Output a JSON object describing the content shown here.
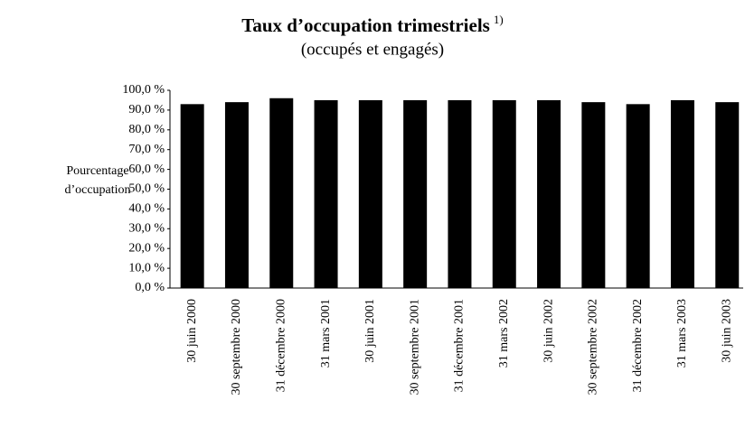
{
  "chart_data": {
    "type": "bar",
    "title": "Taux d’occupation trimestriels",
    "title_note": "1)",
    "subtitle": "(occupés et engagés)",
    "y_axis_label": [
      "Pourcentage",
      "d’occupation"
    ],
    "categories": [
      "30 juin 2000",
      "30 septembre 2000",
      "31 décembre 2000",
      "31 mars 2001",
      "30 juin 2001",
      "30 septembre 2001",
      "31 décembre 2001",
      "31 mars 2002",
      "30 juin 2002",
      "30 septembre 2002",
      "31 décembre 2002",
      "31 mars 2003",
      "30 juin 2003"
    ],
    "values": [
      93,
      94,
      96,
      95,
      95,
      95,
      95,
      95,
      95,
      94,
      93,
      95,
      94
    ],
    "color": "#000000",
    "ylim": [
      0,
      100
    ],
    "yticks": [
      {
        "value": 0,
        "label": "0,0 %"
      },
      {
        "value": 10,
        "label": "10,0 %"
      },
      {
        "value": 20,
        "label": "20,0 %"
      },
      {
        "value": 30,
        "label": "30,0 %"
      },
      {
        "value": 40,
        "label": "40,0 %"
      },
      {
        "value": 50,
        "label": "50,0 %"
      },
      {
        "value": 60,
        "label": "60,0 %"
      },
      {
        "value": 70,
        "label": "70,0 %"
      },
      {
        "value": 80,
        "label": "80,0 %"
      },
      {
        "value": 90,
        "label": "90,0 %"
      },
      {
        "value": 100,
        "label": "100,0 %"
      }
    ],
    "grid": false
  }
}
